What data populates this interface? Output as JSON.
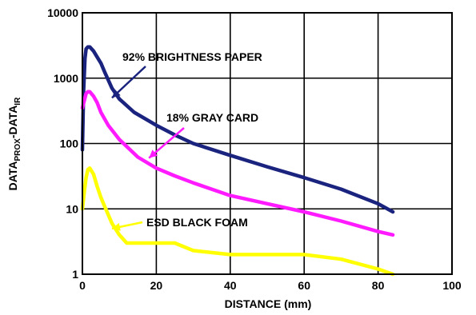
{
  "chart_data": {
    "type": "line",
    "title": "",
    "xlabel": "DISTANCE (mm)",
    "ylabel": {
      "main1": "DATA",
      "sub1": "PROX",
      "main2": "-DATA",
      "sub2": "IR"
    },
    "xlim": [
      0,
      100
    ],
    "ylim": [
      1,
      10000
    ],
    "yscale": "log",
    "grid": true,
    "x_ticks": [
      {
        "value": 0,
        "label": "0"
      },
      {
        "value": 20,
        "label": "20"
      },
      {
        "value": 40,
        "label": "40"
      },
      {
        "value": 60,
        "label": "60"
      },
      {
        "value": 80,
        "label": "80"
      },
      {
        "value": 100,
        "label": "100"
      }
    ],
    "y_ticks": [
      {
        "value": 1,
        "label": "1"
      },
      {
        "value": 10,
        "label": "10"
      },
      {
        "value": 100,
        "label": "100"
      },
      {
        "value": 1000,
        "label": "1000"
      },
      {
        "value": 10000,
        "label": "10000"
      }
    ],
    "series": [
      {
        "name": "92% BRIGHTNESS PAPER",
        "color": "#1a237e",
        "points": [
          [
            0,
            80
          ],
          [
            0.3,
            600
          ],
          [
            0.7,
            2000
          ],
          [
            1,
            2800
          ],
          [
            1.5,
            3000
          ],
          [
            2,
            3000
          ],
          [
            3,
            2600
          ],
          [
            4,
            2100
          ],
          [
            5,
            1700
          ],
          [
            6,
            1250
          ],
          [
            8,
            700
          ],
          [
            10,
            480
          ],
          [
            14,
            300
          ],
          [
            20,
            190
          ],
          [
            25,
            135
          ],
          [
            30,
            100
          ],
          [
            40,
            66
          ],
          [
            50,
            44
          ],
          [
            60,
            30
          ],
          [
            70,
            20
          ],
          [
            80,
            12
          ],
          [
            84,
            9
          ]
        ],
        "label_text": "92% BRIGHTNESS PAPER",
        "label_point": [
          8,
          500
        ]
      },
      {
        "name": "18% GRAY CARD",
        "color": "#ff1aff",
        "points": [
          [
            0,
            350
          ],
          [
            0.5,
            450
          ],
          [
            1,
            580
          ],
          [
            1.5,
            620
          ],
          [
            2,
            620
          ],
          [
            3,
            530
          ],
          [
            4,
            420
          ],
          [
            5,
            300
          ],
          [
            7,
            190
          ],
          [
            10,
            115
          ],
          [
            15,
            62
          ],
          [
            20,
            42
          ],
          [
            25,
            32
          ],
          [
            30,
            25
          ],
          [
            40,
            16
          ],
          [
            50,
            12
          ],
          [
            60,
            9
          ],
          [
            70,
            6.5
          ],
          [
            80,
            4.5
          ],
          [
            84,
            4
          ]
        ],
        "label_text": "18% GRAY CARD",
        "label_point": [
          18,
          60
        ]
      },
      {
        "name": "ESD BLACK FOAM",
        "color": "#ffff00",
        "points": [
          [
            0,
            10
          ],
          [
            0.5,
            18
          ],
          [
            1,
            30
          ],
          [
            1.5,
            40
          ],
          [
            2,
            42
          ],
          [
            3,
            34
          ],
          [
            4,
            22
          ],
          [
            5,
            15
          ],
          [
            6,
            11
          ],
          [
            8,
            6
          ],
          [
            10,
            4
          ],
          [
            12,
            3
          ],
          [
            15,
            3
          ],
          [
            20,
            3
          ],
          [
            25,
            3
          ],
          [
            30,
            2.3
          ],
          [
            40,
            2
          ],
          [
            50,
            2
          ],
          [
            60,
            2
          ],
          [
            70,
            1.7
          ],
          [
            80,
            1.2
          ],
          [
            84,
            1
          ]
        ],
        "label_text": "ESD BLACK FOAM",
        "label_point": [
          8,
          5
        ]
      }
    ]
  }
}
